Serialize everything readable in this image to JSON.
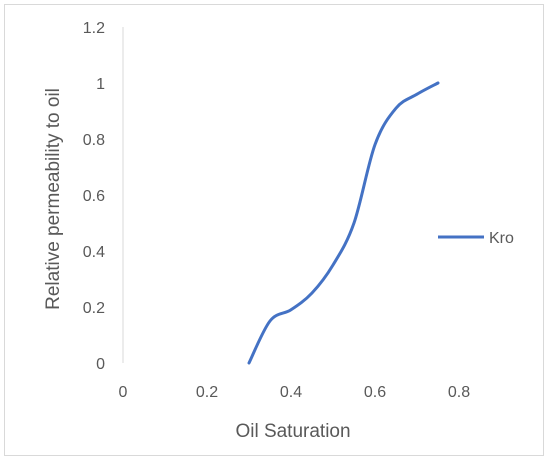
{
  "chart_data": {
    "type": "line",
    "title": "",
    "xlabel": "Oil Saturation",
    "ylabel": "Relative permeability to  oil",
    "xlim": [
      0,
      0.8
    ],
    "ylim": [
      0,
      1.2
    ],
    "x_ticks": [
      "0",
      "0.2",
      "0.4",
      "0.6",
      "0.8"
    ],
    "y_ticks": [
      "0",
      "0.2",
      "0.4",
      "0.6",
      "0.8",
      "1",
      "1.2"
    ],
    "grid": false,
    "legend_position": "right",
    "series": [
      {
        "name": "Kro",
        "color": "#4472c4",
        "x": [
          0.3,
          0.35,
          0.4,
          0.45,
          0.5,
          0.55,
          0.6,
          0.65,
          0.7,
          0.75
        ],
        "y": [
          0.0,
          0.15,
          0.19,
          0.25,
          0.35,
          0.5,
          0.78,
          0.91,
          0.96,
          1.0
        ]
      }
    ]
  }
}
